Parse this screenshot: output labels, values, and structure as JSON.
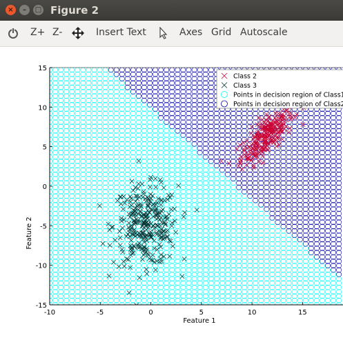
{
  "window": {
    "title": "Figure 2",
    "close_glyph": "×",
    "minimize_glyph": "–",
    "maximize_glyph": "□"
  },
  "toolbar": {
    "rotate_icon": "rotate-icon",
    "zoom_in_label": "Z+",
    "zoom_out_label": "Z-",
    "pan_icon": "pan-icon",
    "insert_text_label": "Insert Text",
    "select_icon": "pointer-icon",
    "axes_label": "Axes",
    "grid_label": "Grid",
    "autoscale_label": "Autoscale"
  },
  "colors": {
    "class2": "#cc0033",
    "class3": "#003333",
    "region_class1": "#00ffff",
    "region_class2": "#0000aa"
  },
  "chart_data": {
    "type": "scatter",
    "xlabel": "Feature 1",
    "ylabel": "Feature 2",
    "xlim": [
      -10,
      19
    ],
    "ylim": [
      -15,
      15
    ],
    "xticks": [
      "-10",
      "-5",
      "0",
      "5",
      "10",
      "15"
    ],
    "yticks": [
      "15",
      "10",
      "5",
      "0",
      "-5",
      "-10",
      "-15"
    ],
    "decision_boundary": {
      "slope": -1.15,
      "intercept": 9.8,
      "note_region_above": "Class2"
    },
    "series": [
      {
        "name": "Class 2",
        "marker": "x",
        "color": "#cc0033",
        "center": [
          11.5,
          6.5
        ],
        "spread": [
          1.3,
          1.8
        ],
        "correlation": 0.75,
        "count": 260
      },
      {
        "name": "Class 3",
        "marker": "x",
        "color": "#003333",
        "center": [
          -0.5,
          -5.0
        ],
        "spread": [
          1.6,
          2.5
        ],
        "correlation": 0.0,
        "count": 320
      }
    ],
    "legend": {
      "position": "top-right",
      "entries": [
        "Class 2",
        "Class 3",
        "Points in decision region of Class1",
        "Points in decision region of Class2"
      ]
    }
  }
}
